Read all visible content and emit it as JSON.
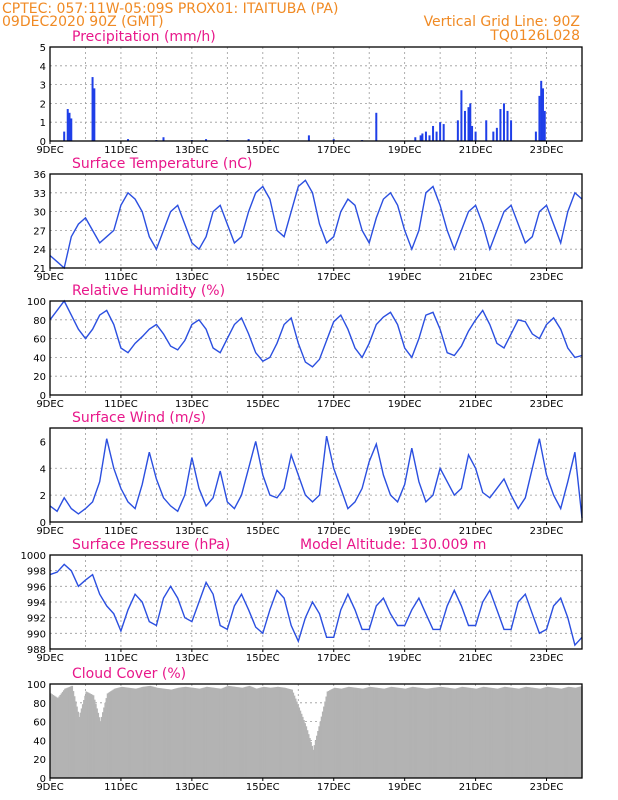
{
  "header": {
    "line1_left": "CPTEC:   057:11W-05:09S   PROX01: ITAITUBA (PA)",
    "line2_left": "09DEC2020 90Z (GMT)",
    "line2_right": "Vertical Grid Line: 90Z",
    "line3_right": "TQ0126L028"
  },
  "x_ticks": [
    "9DEC",
    "11DEC",
    "13DEC",
    "15DEC",
    "17DEC",
    "19DEC",
    "21DEC",
    "23DEC"
  ],
  "colors": {
    "header": "#f08a24",
    "title": "#e8178a",
    "line": "#2b4fe0",
    "bar": "#1f3fe8",
    "cloud": "#b3b3b3"
  },
  "chart_data": [
    {
      "type": "bar",
      "title": "Precipitation (mm/h)",
      "ylim": [
        0,
        5
      ],
      "yticks": [
        "0",
        "1",
        "2",
        "3",
        "4",
        "5"
      ],
      "x_range_days": [
        9,
        24
      ],
      "x": [
        9.4,
        9.5,
        9.55,
        9.6,
        10.2,
        10.25,
        11.2,
        12.0,
        12.2,
        13.0,
        13.4,
        14.0,
        14.6,
        15.2,
        16.3,
        17.0,
        17.8,
        18.2,
        19.3,
        19.45,
        19.5,
        19.6,
        19.7,
        19.8,
        19.9,
        20.0,
        20.1,
        20.5,
        20.6,
        20.7,
        20.8,
        20.85,
        20.9,
        21.0,
        21.3,
        21.5,
        21.6,
        21.7,
        21.8,
        21.9,
        22.0,
        22.7,
        22.8,
        22.85,
        22.9,
        22.95
      ],
      "y": [
        0.5,
        1.7,
        1.5,
        1.2,
        3.4,
        2.8,
        0.1,
        0.05,
        0.2,
        0.05,
        0.1,
        0.05,
        0.1,
        0.05,
        0.3,
        0.1,
        0.05,
        1.5,
        0.2,
        0.3,
        0.4,
        0.5,
        0.3,
        0.8,
        0.5,
        1.0,
        0.9,
        1.1,
        2.7,
        1.6,
        1.8,
        2.0,
        0.8,
        0.5,
        1.1,
        0.5,
        0.7,
        1.7,
        2.0,
        1.6,
        1.1,
        0.5,
        2.4,
        3.2,
        2.8,
        1.6
      ]
    },
    {
      "type": "line",
      "title": "Surface Temperature (nC)",
      "ylim": [
        21,
        36
      ],
      "yticks": [
        "21",
        "24",
        "27",
        "30",
        "33",
        "36"
      ],
      "x": [
        9.0,
        9.2,
        9.4,
        9.6,
        9.8,
        10.0,
        10.2,
        10.4,
        10.6,
        10.8,
        11.0,
        11.2,
        11.4,
        11.6,
        11.8,
        12.0,
        12.2,
        12.4,
        12.6,
        12.8,
        13.0,
        13.2,
        13.4,
        13.6,
        13.8,
        14.0,
        14.2,
        14.4,
        14.6,
        14.8,
        15.0,
        15.2,
        15.4,
        15.6,
        15.8,
        16.0,
        16.2,
        16.4,
        16.6,
        16.8,
        17.0,
        17.2,
        17.4,
        17.6,
        17.8,
        18.0,
        18.2,
        18.4,
        18.6,
        18.8,
        19.0,
        19.2,
        19.4,
        19.6,
        19.8,
        20.0,
        20.2,
        20.4,
        20.6,
        20.8,
        21.0,
        21.2,
        21.4,
        21.6,
        21.8,
        22.0,
        22.2,
        22.4,
        22.6,
        22.8,
        23.0,
        23.2,
        23.4,
        23.6,
        23.8,
        24.0
      ],
      "y": [
        23,
        22,
        21,
        26,
        28,
        29,
        27,
        25,
        26,
        27,
        31,
        33,
        32,
        30,
        26,
        24,
        27,
        30,
        31,
        28,
        25,
        24,
        26,
        30,
        31,
        28,
        25,
        26,
        30,
        33,
        34,
        32,
        27,
        26,
        30,
        34,
        35,
        33,
        28,
        25,
        26,
        30,
        32,
        31,
        27,
        25,
        29,
        32,
        33,
        31,
        27,
        24,
        27,
        33,
        34,
        31,
        27,
        24,
        27,
        30,
        31,
        28,
        24,
        27,
        30,
        31,
        28,
        25,
        26,
        30,
        31,
        28,
        25,
        30,
        33,
        32
      ],
      "vgrid_days": [
        9,
        10,
        11,
        12,
        13,
        14,
        15,
        16,
        17,
        18,
        19,
        20,
        21,
        22,
        23
      ]
    },
    {
      "type": "line",
      "title": "Relative Humidity (%)",
      "ylim": [
        0,
        100
      ],
      "yticks": [
        "0",
        "20",
        "40",
        "60",
        "80",
        "100"
      ],
      "x": [
        9.0,
        9.2,
        9.4,
        9.6,
        9.8,
        10.0,
        10.2,
        10.4,
        10.6,
        10.8,
        11.0,
        11.2,
        11.4,
        11.6,
        11.8,
        12.0,
        12.2,
        12.4,
        12.6,
        12.8,
        13.0,
        13.2,
        13.4,
        13.6,
        13.8,
        14.0,
        14.2,
        14.4,
        14.6,
        14.8,
        15.0,
        15.2,
        15.4,
        15.6,
        15.8,
        16.0,
        16.2,
        16.4,
        16.6,
        16.8,
        17.0,
        17.2,
        17.4,
        17.6,
        17.8,
        18.0,
        18.2,
        18.4,
        18.6,
        18.8,
        19.0,
        19.2,
        19.4,
        19.6,
        19.8,
        20.0,
        20.2,
        20.4,
        20.6,
        20.8,
        21.0,
        21.2,
        21.4,
        21.6,
        21.8,
        22.0,
        22.2,
        22.4,
        22.6,
        22.8,
        23.0,
        23.2,
        23.4,
        23.6,
        23.8,
        24.0
      ],
      "y": [
        80,
        90,
        100,
        85,
        70,
        60,
        70,
        85,
        90,
        75,
        50,
        45,
        55,
        62,
        70,
        75,
        65,
        52,
        48,
        58,
        75,
        80,
        70,
        50,
        45,
        60,
        75,
        82,
        65,
        45,
        36,
        40,
        55,
        75,
        82,
        55,
        35,
        30,
        38,
        58,
        78,
        85,
        70,
        50,
        40,
        55,
        75,
        83,
        88,
        75,
        50,
        40,
        60,
        85,
        88,
        70,
        45,
        42,
        52,
        68,
        80,
        90,
        75,
        55,
        50,
        65,
        80,
        78,
        65,
        60,
        75,
        82,
        70,
        50,
        40,
        42
      ],
      "vgrid_days": [
        9,
        10,
        11,
        12,
        13,
        14,
        15,
        16,
        17,
        18,
        19,
        20,
        21,
        22,
        23
      ]
    },
    {
      "type": "line",
      "title": "Surface Wind (m/s)",
      "ylim": [
        0,
        7
      ],
      "yticks": [
        "0",
        "2",
        "4",
        "6"
      ],
      "x": [
        9.0,
        9.2,
        9.4,
        9.6,
        9.8,
        10.0,
        10.2,
        10.4,
        10.6,
        10.8,
        11.0,
        11.2,
        11.4,
        11.6,
        11.8,
        12.0,
        12.2,
        12.4,
        12.6,
        12.8,
        13.0,
        13.2,
        13.4,
        13.6,
        13.8,
        14.0,
        14.2,
        14.4,
        14.6,
        14.8,
        15.0,
        15.2,
        15.4,
        15.6,
        15.8,
        16.0,
        16.2,
        16.4,
        16.6,
        16.8,
        17.0,
        17.2,
        17.4,
        17.6,
        17.8,
        18.0,
        18.2,
        18.4,
        18.6,
        18.8,
        19.0,
        19.2,
        19.4,
        19.6,
        19.8,
        20.0,
        20.2,
        20.4,
        20.6,
        20.8,
        21.0,
        21.2,
        21.4,
        21.6,
        21.8,
        22.0,
        22.2,
        22.4,
        22.6,
        22.8,
        23.0,
        23.2,
        23.4,
        23.6,
        23.8,
        24.0
      ],
      "y": [
        1.2,
        0.8,
        1.8,
        1.0,
        0.6,
        1.0,
        1.5,
        3.0,
        6.2,
        4.0,
        2.5,
        1.5,
        1.0,
        2.8,
        5.2,
        3.2,
        1.8,
        1.2,
        0.8,
        2.0,
        4.8,
        2.5,
        1.2,
        1.8,
        3.8,
        1.5,
        1.0,
        2.0,
        4.0,
        6.0,
        3.5,
        2.0,
        1.8,
        2.5,
        5.0,
        3.5,
        2.0,
        1.5,
        2.0,
        6.4,
        4.0,
        2.5,
        1.0,
        1.5,
        2.5,
        4.5,
        5.8,
        3.5,
        2.0,
        1.5,
        2.8,
        5.5,
        3.0,
        1.5,
        2.0,
        4.0,
        3.0,
        2.0,
        2.5,
        5.0,
        4.0,
        2.2,
        1.8,
        2.5,
        3.2,
        2.0,
        1.0,
        1.8,
        4.0,
        6.2,
        3.5,
        2.0,
        1.0,
        3.0,
        5.2,
        0.3
      ],
      "vgrid_days": [
        9,
        10,
        11,
        12,
        13,
        14,
        15,
        16,
        17,
        18,
        19,
        20,
        21,
        22,
        23
      ]
    },
    {
      "type": "line",
      "title": "Surface Pressure (hPa)",
      "subtitle": "Model Altitude: 130.009 m",
      "ylim": [
        988,
        1000
      ],
      "yticks": [
        "988",
        "990",
        "992",
        "994",
        "996",
        "998",
        "1000"
      ],
      "x": [
        9.0,
        9.2,
        9.4,
        9.6,
        9.8,
        10.0,
        10.2,
        10.4,
        10.6,
        10.8,
        11.0,
        11.2,
        11.4,
        11.6,
        11.8,
        12.0,
        12.2,
        12.4,
        12.6,
        12.8,
        13.0,
        13.2,
        13.4,
        13.6,
        13.8,
        14.0,
        14.2,
        14.4,
        14.6,
        14.8,
        15.0,
        15.2,
        15.4,
        15.6,
        15.8,
        16.0,
        16.2,
        16.4,
        16.6,
        16.8,
        17.0,
        17.2,
        17.4,
        17.6,
        17.8,
        18.0,
        18.2,
        18.4,
        18.6,
        18.8,
        19.0,
        19.2,
        19.4,
        19.6,
        19.8,
        20.0,
        20.2,
        20.4,
        20.6,
        20.8,
        21.0,
        21.2,
        21.4,
        21.6,
        21.8,
        22.0,
        22.2,
        22.4,
        22.6,
        22.8,
        23.0,
        23.2,
        23.4,
        23.6,
        23.8,
        24.0
      ],
      "y": [
        997.5,
        997.8,
        998.8,
        998.0,
        996.0,
        996.8,
        997.5,
        995.0,
        993.5,
        992.5,
        990.3,
        993.0,
        995.0,
        994.0,
        991.5,
        991.0,
        994.5,
        996.0,
        994.5,
        992.0,
        991.5,
        994.0,
        996.5,
        995.0,
        991.0,
        990.5,
        993.5,
        995.0,
        993.0,
        990.8,
        990.0,
        993.0,
        995.5,
        994.5,
        991.0,
        989.0,
        992.0,
        994.0,
        992.5,
        989.5,
        989.5,
        993.0,
        995.0,
        993.0,
        990.5,
        990.5,
        993.5,
        994.5,
        992.5,
        991.0,
        991.0,
        993.0,
        994.5,
        992.5,
        990.5,
        990.5,
        993.5,
        995.5,
        993.5,
        991.0,
        991.0,
        994.0,
        995.5,
        993.0,
        990.5,
        990.5,
        994.0,
        995.0,
        992.5,
        990.0,
        990.5,
        993.5,
        994.5,
        992.0,
        988.5,
        989.5
      ],
      "vgrid_days": [
        9,
        10,
        11,
        12,
        13,
        14,
        15,
        16,
        17,
        18,
        19,
        20,
        21,
        22,
        23
      ]
    },
    {
      "type": "area",
      "title": "Cloud Cover (%)",
      "ylim": [
        0,
        100
      ],
      "yticks": [
        "0",
        "20",
        "40",
        "60",
        "80",
        "100"
      ],
      "x": [
        9.0,
        9.2,
        9.4,
        9.6,
        9.8,
        10.0,
        10.2,
        10.4,
        10.6,
        10.8,
        11.0,
        11.2,
        11.4,
        11.6,
        11.8,
        12.0,
        12.2,
        12.4,
        12.6,
        12.8,
        13.0,
        13.2,
        13.4,
        13.6,
        13.8,
        14.0,
        14.2,
        14.4,
        14.6,
        14.8,
        15.0,
        15.2,
        15.4,
        15.6,
        15.8,
        16.0,
        16.2,
        16.4,
        16.6,
        16.8,
        17.0,
        17.2,
        17.4,
        17.6,
        17.8,
        18.0,
        18.2,
        18.4,
        18.6,
        18.8,
        19.0,
        19.2,
        19.4,
        19.6,
        19.8,
        20.0,
        20.2,
        20.4,
        20.6,
        20.8,
        21.0,
        21.2,
        21.4,
        21.6,
        21.8,
        22.0,
        22.2,
        22.4,
        22.6,
        22.8,
        23.0,
        23.2,
        23.4,
        23.6,
        23.8,
        24.0
      ],
      "y": [
        90,
        85,
        95,
        98,
        65,
        92,
        88,
        60,
        90,
        95,
        97,
        96,
        95,
        97,
        98,
        96,
        95,
        94,
        96,
        97,
        96,
        95,
        97,
        96,
        95,
        98,
        97,
        96,
        98,
        95,
        97,
        96,
        97,
        96,
        94,
        75,
        55,
        30,
        60,
        92,
        96,
        95,
        97,
        96,
        95,
        97,
        96,
        95,
        97,
        96,
        95,
        97,
        96,
        95,
        96,
        97,
        96,
        95,
        97,
        96,
        95,
        97,
        96,
        95,
        97,
        96,
        95,
        97,
        96,
        95,
        97,
        96,
        95,
        97,
        96,
        98
      ]
    }
  ]
}
